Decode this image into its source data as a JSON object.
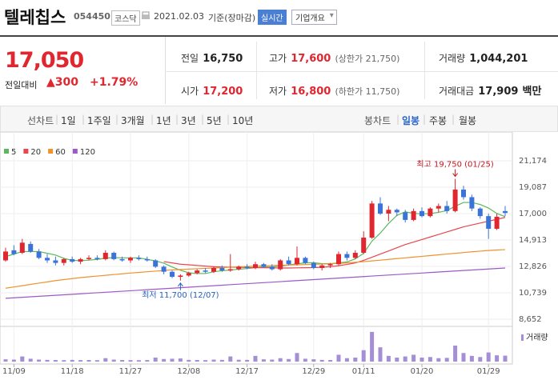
{
  "header": {
    "name": "텔레칩스",
    "code": "054450",
    "market": "코스닥",
    "date": "2021.02.03",
    "basis": "기준(장마감)",
    "buttons": [
      "실시간",
      "기업개요"
    ]
  },
  "quote": {
    "price": "17,050",
    "change_label": "전일대비",
    "change": "300",
    "change_pct": "+1.79%"
  },
  "summary": {
    "prev": {
      "label": "전일",
      "value": "16,750"
    },
    "high": {
      "label": "고가",
      "value": "17,600",
      "note": "(상한가 21,750)"
    },
    "volume": {
      "label": "거래량",
      "value": "1,044,201"
    },
    "open": {
      "label": "시가",
      "value": "17,200"
    },
    "low": {
      "label": "저가",
      "value": "16,800",
      "note": "(하한가 11,750)"
    },
    "amount": {
      "label": "거래대금",
      "value": "17,909",
      "unit": "백만"
    }
  },
  "tabs": {
    "line_label": "선차트",
    "periods": [
      "1일",
      "1주일",
      "3개월",
      "1년",
      "3년",
      "5년",
      "10년"
    ],
    "candle_label": "봉차트",
    "candle_periods": [
      "일봉",
      "주봉",
      "월봉"
    ],
    "active_index": 0
  },
  "chart_data": {
    "type": "candlestick",
    "categories": [
      null,
      "11/09",
      null,
      null,
      null,
      null,
      null,
      null,
      "11/18",
      null,
      null,
      null,
      null,
      null,
      null,
      "11/27",
      null,
      null,
      null,
      null,
      null,
      null,
      "12/08",
      null,
      null,
      null,
      null,
      null,
      null,
      "12/17",
      null,
      null,
      null,
      null,
      null,
      null,
      null,
      "12/29",
      null,
      null,
      null,
      null,
      null,
      "01/11",
      null,
      null,
      null,
      null,
      null,
      null,
      "01/20",
      null,
      null,
      null,
      null,
      null,
      null,
      null,
      "01/29",
      null,
      null
    ],
    "open": [
      13300,
      14100,
      13900,
      14600,
      14000,
      13500,
      13300,
      13100,
      13400,
      13200,
      13400,
      13500,
      13400,
      13900,
      13400,
      13300,
      13500,
      13400,
      13300,
      12800,
      12400,
      12000,
      12100,
      12300,
      12500,
      12400,
      12700,
      12500,
      12600,
      12800,
      12700,
      13000,
      12800,
      12600,
      13300,
      13000,
      13500,
      13100,
      12700,
      12900,
      13000,
      13800,
      13500,
      13900,
      15100,
      17800,
      17000,
      17300,
      17100,
      16500,
      17200,
      16800,
      17400,
      17600,
      17200,
      18900,
      18300,
      17400,
      16800,
      15800,
      17200
    ],
    "high": [
      14300,
      14500,
      15000,
      14800,
      14200,
      13800,
      13600,
      13500,
      13600,
      13500,
      13700,
      13700,
      14100,
      14000,
      13600,
      13600,
      13700,
      13600,
      13400,
      12900,
      12500,
      12200,
      12400,
      12600,
      12700,
      12800,
      12900,
      13800,
      12900,
      13000,
      13200,
      13100,
      13000,
      13400,
      13600,
      14400,
      13600,
      13200,
      13000,
      13100,
      14000,
      14000,
      14100,
      15600,
      18000,
      18300,
      17600,
      17400,
      17300,
      17400,
      17500,
      17500,
      17800,
      18000,
      19750,
      19200,
      18500,
      17500,
      17000,
      17000,
      17600
    ],
    "low": [
      13200,
      13700,
      13800,
      13900,
      13400,
      13100,
      12900,
      12900,
      13100,
      13000,
      13300,
      13300,
      13300,
      13300,
      13200,
      13100,
      13300,
      13200,
      12700,
      12200,
      11900,
      11700,
      12000,
      12200,
      12300,
      12300,
      12400,
      12400,
      12500,
      12600,
      12600,
      12700,
      12500,
      12500,
      12900,
      12900,
      13000,
      12600,
      12500,
      12700,
      12900,
      13300,
      13400,
      13800,
      15000,
      16900,
      16400,
      16800,
      16300,
      16400,
      16700,
      16700,
      17100,
      17000,
      17100,
      18100,
      17200,
      16600,
      15000,
      15700,
      16800
    ],
    "close": [
      14000,
      13800,
      14700,
      14000,
      13500,
      13300,
      13100,
      13400,
      13200,
      13400,
      13500,
      13400,
      13900,
      13400,
      13300,
      13500,
      13400,
      13300,
      12800,
      12400,
      12000,
      12100,
      12300,
      12500,
      12400,
      12700,
      12500,
      12600,
      12800,
      12700,
      13000,
      12800,
      12600,
      13300,
      13000,
      13500,
      13100,
      12700,
      12900,
      13000,
      13800,
      13500,
      13900,
      15100,
      17800,
      17000,
      17300,
      17100,
      16500,
      17200,
      16800,
      17400,
      17600,
      17200,
      18900,
      18300,
      17400,
      16800,
      15800,
      16750,
      17050
    ],
    "up_color": "#e0262f",
    "down_color": "#3b74d8",
    "ylim": [
      8200,
      22200
    ],
    "yticks": [
      {
        "value": 21174,
        "label": "21,174"
      },
      {
        "value": 19087,
        "label": "19,087"
      },
      {
        "value": 17000,
        "label": "17,000"
      },
      {
        "value": 14913,
        "label": "14,913"
      },
      {
        "value": 12826,
        "label": "12,826"
      },
      {
        "value": 10739,
        "label": "10,739"
      },
      {
        "value": 8652,
        "label": "8,652"
      }
    ],
    "grid": true,
    "series": [
      {
        "name": "5",
        "color": "#5cb85c",
        "values": [
          13600,
          13800,
          14000,
          14000,
          14000,
          13860,
          13720,
          13460,
          13300,
          13280,
          13320,
          13380,
          13480,
          13520,
          13500,
          13500,
          13500,
          13380,
          13260,
          13080,
          12780,
          12520,
          12320,
          12260,
          12260,
          12400,
          12480,
          12540,
          12600,
          12660,
          12720,
          12780,
          12780,
          12840,
          12940,
          13040,
          13100,
          13120,
          13040,
          13040,
          13100,
          13180,
          13420,
          13860,
          14820,
          15460,
          16220,
          16860,
          17140,
          17020,
          16980,
          17000,
          17100,
          17240,
          17580,
          17880,
          17880,
          17720,
          17440,
          17010,
          16760
        ]
      },
      {
        "name": "20",
        "color": "#e8474f",
        "values": [
          null,
          null,
          null,
          null,
          null,
          null,
          null,
          null,
          null,
          null,
          null,
          null,
          null,
          null,
          null,
          null,
          null,
          null,
          null,
          13200,
          13100,
          13000,
          12950,
          12900,
          12850,
          12800,
          12780,
          12760,
          12750,
          12740,
          12730,
          12720,
          12710,
          12700,
          12700,
          12710,
          12720,
          12730,
          12760,
          12800,
          12880,
          12980,
          13100,
          13300,
          13550,
          13800,
          14050,
          14300,
          14550,
          14750,
          14950,
          15150,
          15350,
          15550,
          15750,
          15950,
          16100,
          16250,
          16400,
          16550,
          16700
        ]
      },
      {
        "name": "60",
        "color": "#f0922e",
        "values": [
          11100,
          11200,
          11300,
          11400,
          11500,
          11600,
          11700,
          11780,
          11860,
          11940,
          12000,
          12060,
          12120,
          12180,
          12240,
          12300,
          12350,
          12400,
          12450,
          12500,
          12550,
          12580,
          12610,
          12640,
          12670,
          12700,
          12730,
          12760,
          12790,
          12820,
          12850,
          12870,
          12890,
          12910,
          12930,
          12950,
          12970,
          12990,
          13010,
          13030,
          13060,
          13100,
          13150,
          13200,
          13260,
          13320,
          13380,
          13440,
          13500,
          13560,
          13620,
          13680,
          13740,
          13800,
          13860,
          13920,
          13980,
          14030,
          14080,
          14120,
          14150
        ]
      },
      {
        "name": "120",
        "color": "#9b59c9",
        "values": [
          10300,
          10340,
          10380,
          10420,
          10460,
          10500,
          10540,
          10580,
          10620,
          10660,
          10700,
          10740,
          10780,
          10820,
          10860,
          10900,
          10940,
          10980,
          11020,
          11060,
          11100,
          11140,
          11180,
          11220,
          11260,
          11300,
          11340,
          11380,
          11420,
          11460,
          11500,
          11540,
          11580,
          11620,
          11660,
          11700,
          11740,
          11780,
          11820,
          11860,
          11900,
          11940,
          11980,
          12020,
          12060,
          12100,
          12140,
          12180,
          12220,
          12260,
          12300,
          12340,
          12380,
          12420,
          12460,
          12500,
          12540,
          12580,
          12620,
          12660,
          12700
        ]
      }
    ],
    "volume": {
      "name": "거래량",
      "color": "#a48fd6",
      "ylim": [
        0,
        5600000
      ],
      "values": [
        400000,
        350000,
        900000,
        500000,
        350000,
        300000,
        280000,
        250000,
        300000,
        260000,
        280000,
        250000,
        600000,
        350000,
        280000,
        260000,
        250000,
        270000,
        700000,
        450000,
        500000,
        550000,
        300000,
        280000,
        260000,
        350000,
        300000,
        900000,
        320000,
        300000,
        1000000,
        400000,
        350000,
        600000,
        450000,
        1500000,
        500000,
        400000,
        300000,
        280000,
        1200000,
        600000,
        700000,
        2000000,
        5200000,
        2500000,
        1000000,
        700000,
        900000,
        1200000,
        700000,
        800000,
        600000,
        650000,
        2800000,
        1500000,
        1000000,
        800000,
        1600000,
        1100000,
        1044201
      ]
    },
    "annotations": [
      {
        "text": "최고 19,750 (01/25)",
        "index": 54,
        "anchor": "high",
        "color": "#c8151d"
      },
      {
        "text": "최저 11,700 (12/07)",
        "index": 21,
        "anchor": "low",
        "color": "#2660c4"
      }
    ]
  }
}
